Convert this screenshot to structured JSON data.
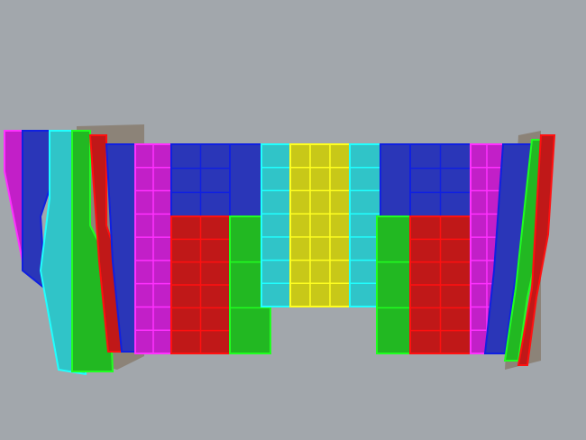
{
  "viewport": {
    "background": "#a2a7ac"
  },
  "palette": {
    "blue": "#2a36b8",
    "blue_edge": "#1020e0",
    "magenta": "#c21fc8",
    "magenta_edge": "#ff30ff",
    "red": "#c01818",
    "red_edge": "#ff1010",
    "green": "#22b822",
    "green_edge": "#20ff20",
    "cyan": "#30c4c8",
    "cyan_edge": "#20ffff",
    "yellow": "#c8c818",
    "yellow_edge": "#ffff20",
    "backing": "#8c8378"
  }
}
